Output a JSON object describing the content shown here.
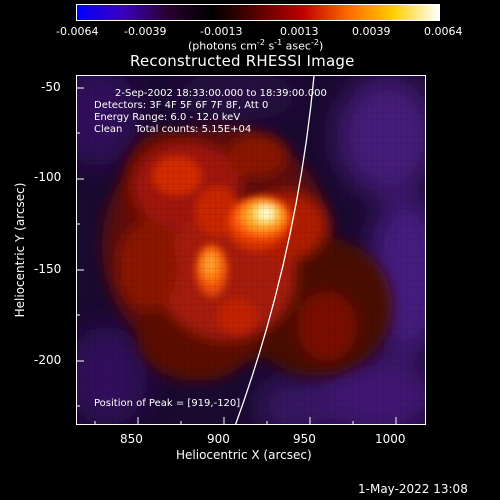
{
  "colorbar": {
    "ticks": [
      "-0.0064",
      "-0.0039",
      "-0.0013",
      "0.0013",
      "0.0039",
      "0.0064"
    ],
    "colors": [
      "#0000ff",
      "#3a00c0",
      "#2a0030",
      "#000000",
      "#5a0000",
      "#c00000",
      "#ff6a00",
      "#ffd000",
      "#ffffff"
    ]
  },
  "units": {
    "prefix": "(photons cm",
    "exp1": "-2",
    "mid1": " s",
    "exp2": "-1",
    "mid2": " asec",
    "exp3": "-2",
    "suffix": ")"
  },
  "title": "Reconstructed RHESSI Image",
  "annotations": {
    "time_range": "2-Sep-2002 18:33:00.000 to 18:39:00.000",
    "detectors": "Detectors: 3F 4F 5F 6F 7F 8F, Att 0",
    "energy": "Energy Range: 6.0 - 12.0 keV",
    "clean": "Clean    Total counts: 5.15E+04",
    "peak": "Position of Peak = [919,-120]"
  },
  "axes": {
    "x_label": "Heliocentric X (arcsec)",
    "y_label": "Heliocentric Y (arcsec)",
    "x_ticks": [
      "850",
      "900",
      "950",
      "1000"
    ],
    "y_ticks": [
      "-50",
      "-100",
      "-150",
      "-200"
    ]
  },
  "footer": "1-May-2022 13:08"
}
